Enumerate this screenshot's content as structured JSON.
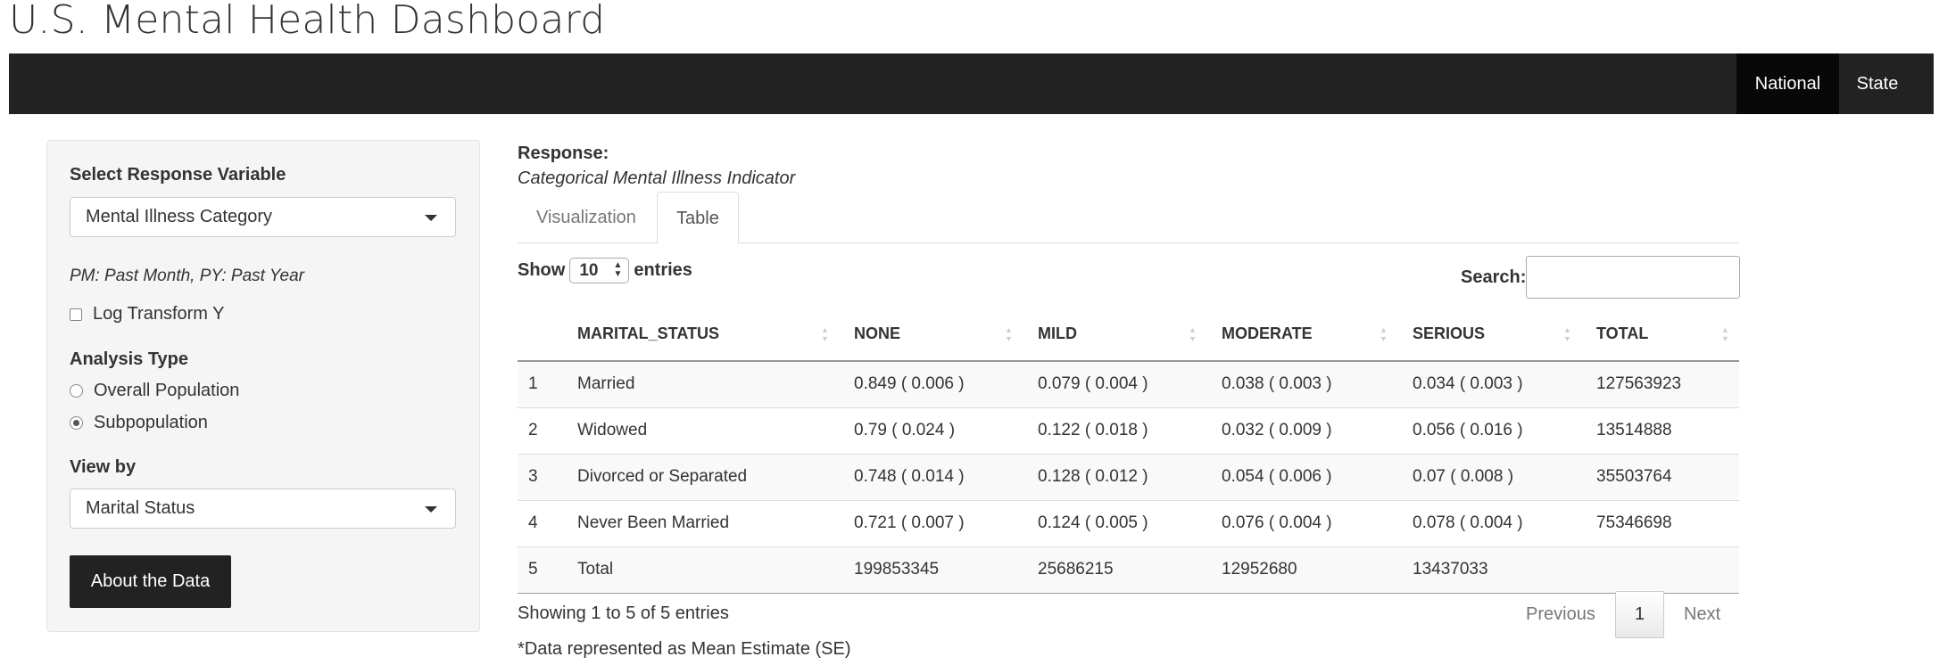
{
  "header": {
    "title": "U.S. Mental Health Dashboard"
  },
  "navbar": {
    "items": [
      {
        "label": "National",
        "active": true
      },
      {
        "label": "State",
        "active": false
      }
    ]
  },
  "sidebar": {
    "response_label": "Select Response Variable",
    "response_value": "Mental Illness Category",
    "note": "PM: Past Month, PY: Past Year",
    "log_transform_label": "Log Transform Y",
    "analysis_label": "Analysis Type",
    "analysis_options": [
      {
        "label": "Overall Population",
        "checked": false
      },
      {
        "label": "Subpopulation",
        "checked": true
      }
    ],
    "viewby_label": "View by",
    "viewby_value": "Marital Status",
    "about_button": "About the Data"
  },
  "main": {
    "response_label": "Response:",
    "response_value": "Categorical Mental Illness Indicator",
    "tabs": [
      {
        "label": "Visualization",
        "active": false
      },
      {
        "label": "Table",
        "active": true
      }
    ],
    "show_label": "Show",
    "entries_value": "10",
    "entries_label": "entries",
    "search_label": "Search:",
    "table": {
      "headers": [
        "",
        "MARITAL_STATUS",
        "NONE",
        "MILD",
        "MODERATE",
        "SERIOUS",
        "TOTAL"
      ],
      "rows": [
        [
          "1",
          "Married",
          "0.849 ( 0.006 )",
          "0.079 ( 0.004 )",
          "0.038 ( 0.003 )",
          "0.034 ( 0.003 )",
          "127563923"
        ],
        [
          "2",
          "Widowed",
          "0.79 ( 0.024 )",
          "0.122 ( 0.018 )",
          "0.032 ( 0.009 )",
          "0.056 ( 0.016 )",
          "13514888"
        ],
        [
          "3",
          "Divorced or Separated",
          "0.748 ( 0.014 )",
          "0.128 ( 0.012 )",
          "0.054 ( 0.006 )",
          "0.07 ( 0.008 )",
          "35503764"
        ],
        [
          "4",
          "Never Been Married",
          "0.721 ( 0.007 )",
          "0.124 ( 0.005 )",
          "0.076 ( 0.004 )",
          "0.078 ( 0.004 )",
          "75346698"
        ],
        [
          "5",
          "Total",
          "199853345",
          "25686215",
          "12952680",
          "13437033",
          ""
        ]
      ]
    },
    "info": "Showing 1 to 5 of 5 entries",
    "pagination": {
      "previous": "Previous",
      "current": "1",
      "next": "Next"
    },
    "footnote": "*Data represented as Mean Estimate (SE)"
  }
}
